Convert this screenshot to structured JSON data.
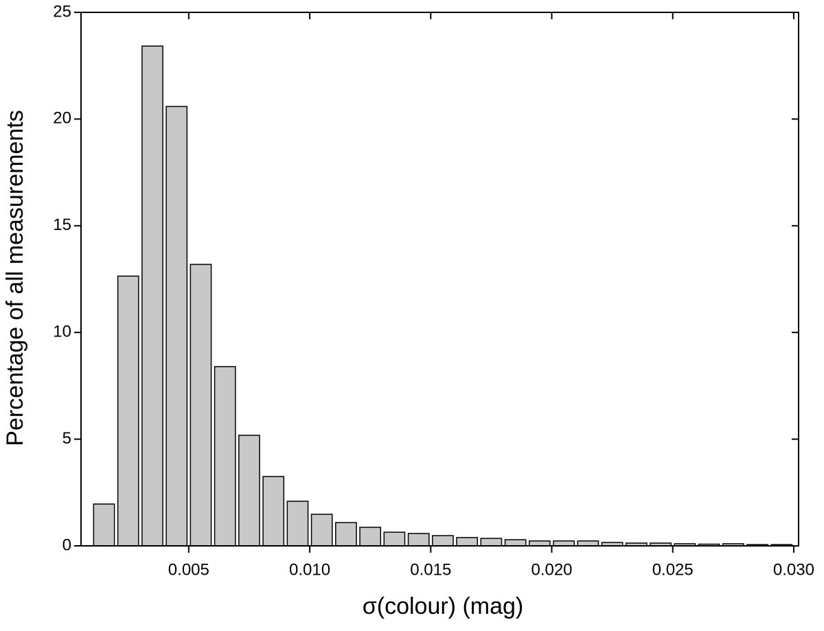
{
  "chart_data": {
    "type": "histogram",
    "x_label": "σ(colour)  (mag)",
    "y_label": "Percentage of all measurements",
    "bins": [
      0.001,
      0.002,
      0.003,
      0.004,
      0.005,
      0.006,
      0.007,
      0.008,
      0.009,
      0.01,
      0.011,
      0.012,
      0.013,
      0.014,
      0.015,
      0.016,
      0.017,
      0.018,
      0.019,
      0.02,
      0.021,
      0.022,
      0.023,
      0.024,
      0.025,
      0.026,
      0.027,
      0.028,
      0.029,
      0.03
    ],
    "values": [
      1.96,
      12.64,
      23.42,
      20.59,
      13.19,
      8.4,
      5.18,
      3.25,
      2.09,
      1.48,
      1.09,
      0.87,
      0.64,
      0.58,
      0.48,
      0.39,
      0.35,
      0.29,
      0.23,
      0.23,
      0.23,
      0.16,
      0.13,
      0.13,
      0.1,
      0.08,
      0.1,
      0.06,
      0.06
    ],
    "color": "#c8c8c8",
    "xlim": [
      0.00055,
      0.0302
    ],
    "xticks": [
      0.005,
      {
        "value": 0.01,
        "label": "0.010"
      },
      0.015,
      {
        "value": 0.02,
        "label": "0.020"
      },
      0.025,
      {
        "value": 0.03,
        "label": "0.030"
      }
    ],
    "ylim": [
      0,
      25
    ],
    "yticks": [
      0,
      5,
      10,
      15,
      20,
      25
    ]
  }
}
